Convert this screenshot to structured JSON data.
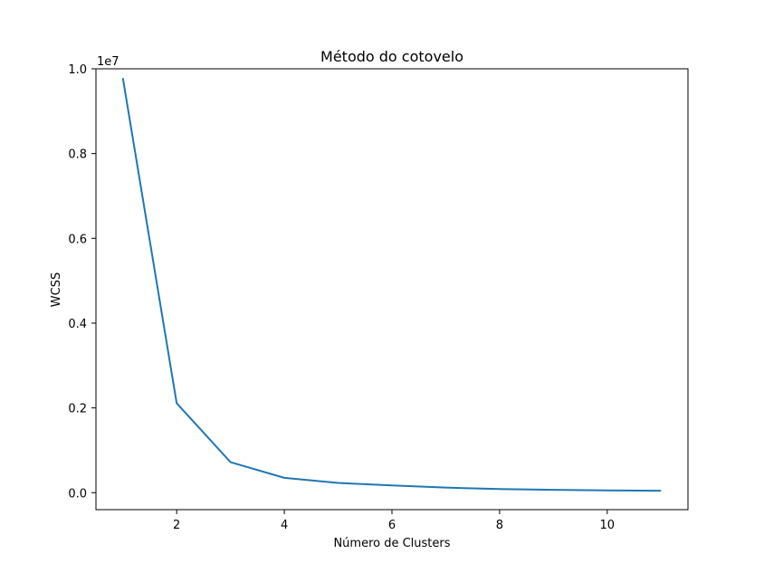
{
  "chart_data": {
    "type": "line",
    "title": "Método do cotovelo",
    "xlabel": "Número de Clusters",
    "ylabel": "WCSS",
    "y_offset_label": "1e7",
    "x_ticks": [
      "2",
      "4",
      "6",
      "8",
      "10"
    ],
    "y_ticks": [
      "0.0",
      "0.2",
      "0.4",
      "0.6",
      "0.8",
      "1.0"
    ],
    "xlim": [
      0.5,
      11.5
    ],
    "ylim": [
      -0.04,
      1.0
    ],
    "grid": false,
    "series": [
      {
        "color": "#1f77b4",
        "x": [
          1,
          2,
          3,
          4,
          5,
          6,
          7,
          8,
          9,
          10,
          11
        ],
        "y": [
          0.978,
          0.211,
          0.072,
          0.035,
          0.023,
          0.017,
          0.012,
          0.0085,
          0.0068,
          0.0055,
          0.0045
        ]
      }
    ]
  }
}
